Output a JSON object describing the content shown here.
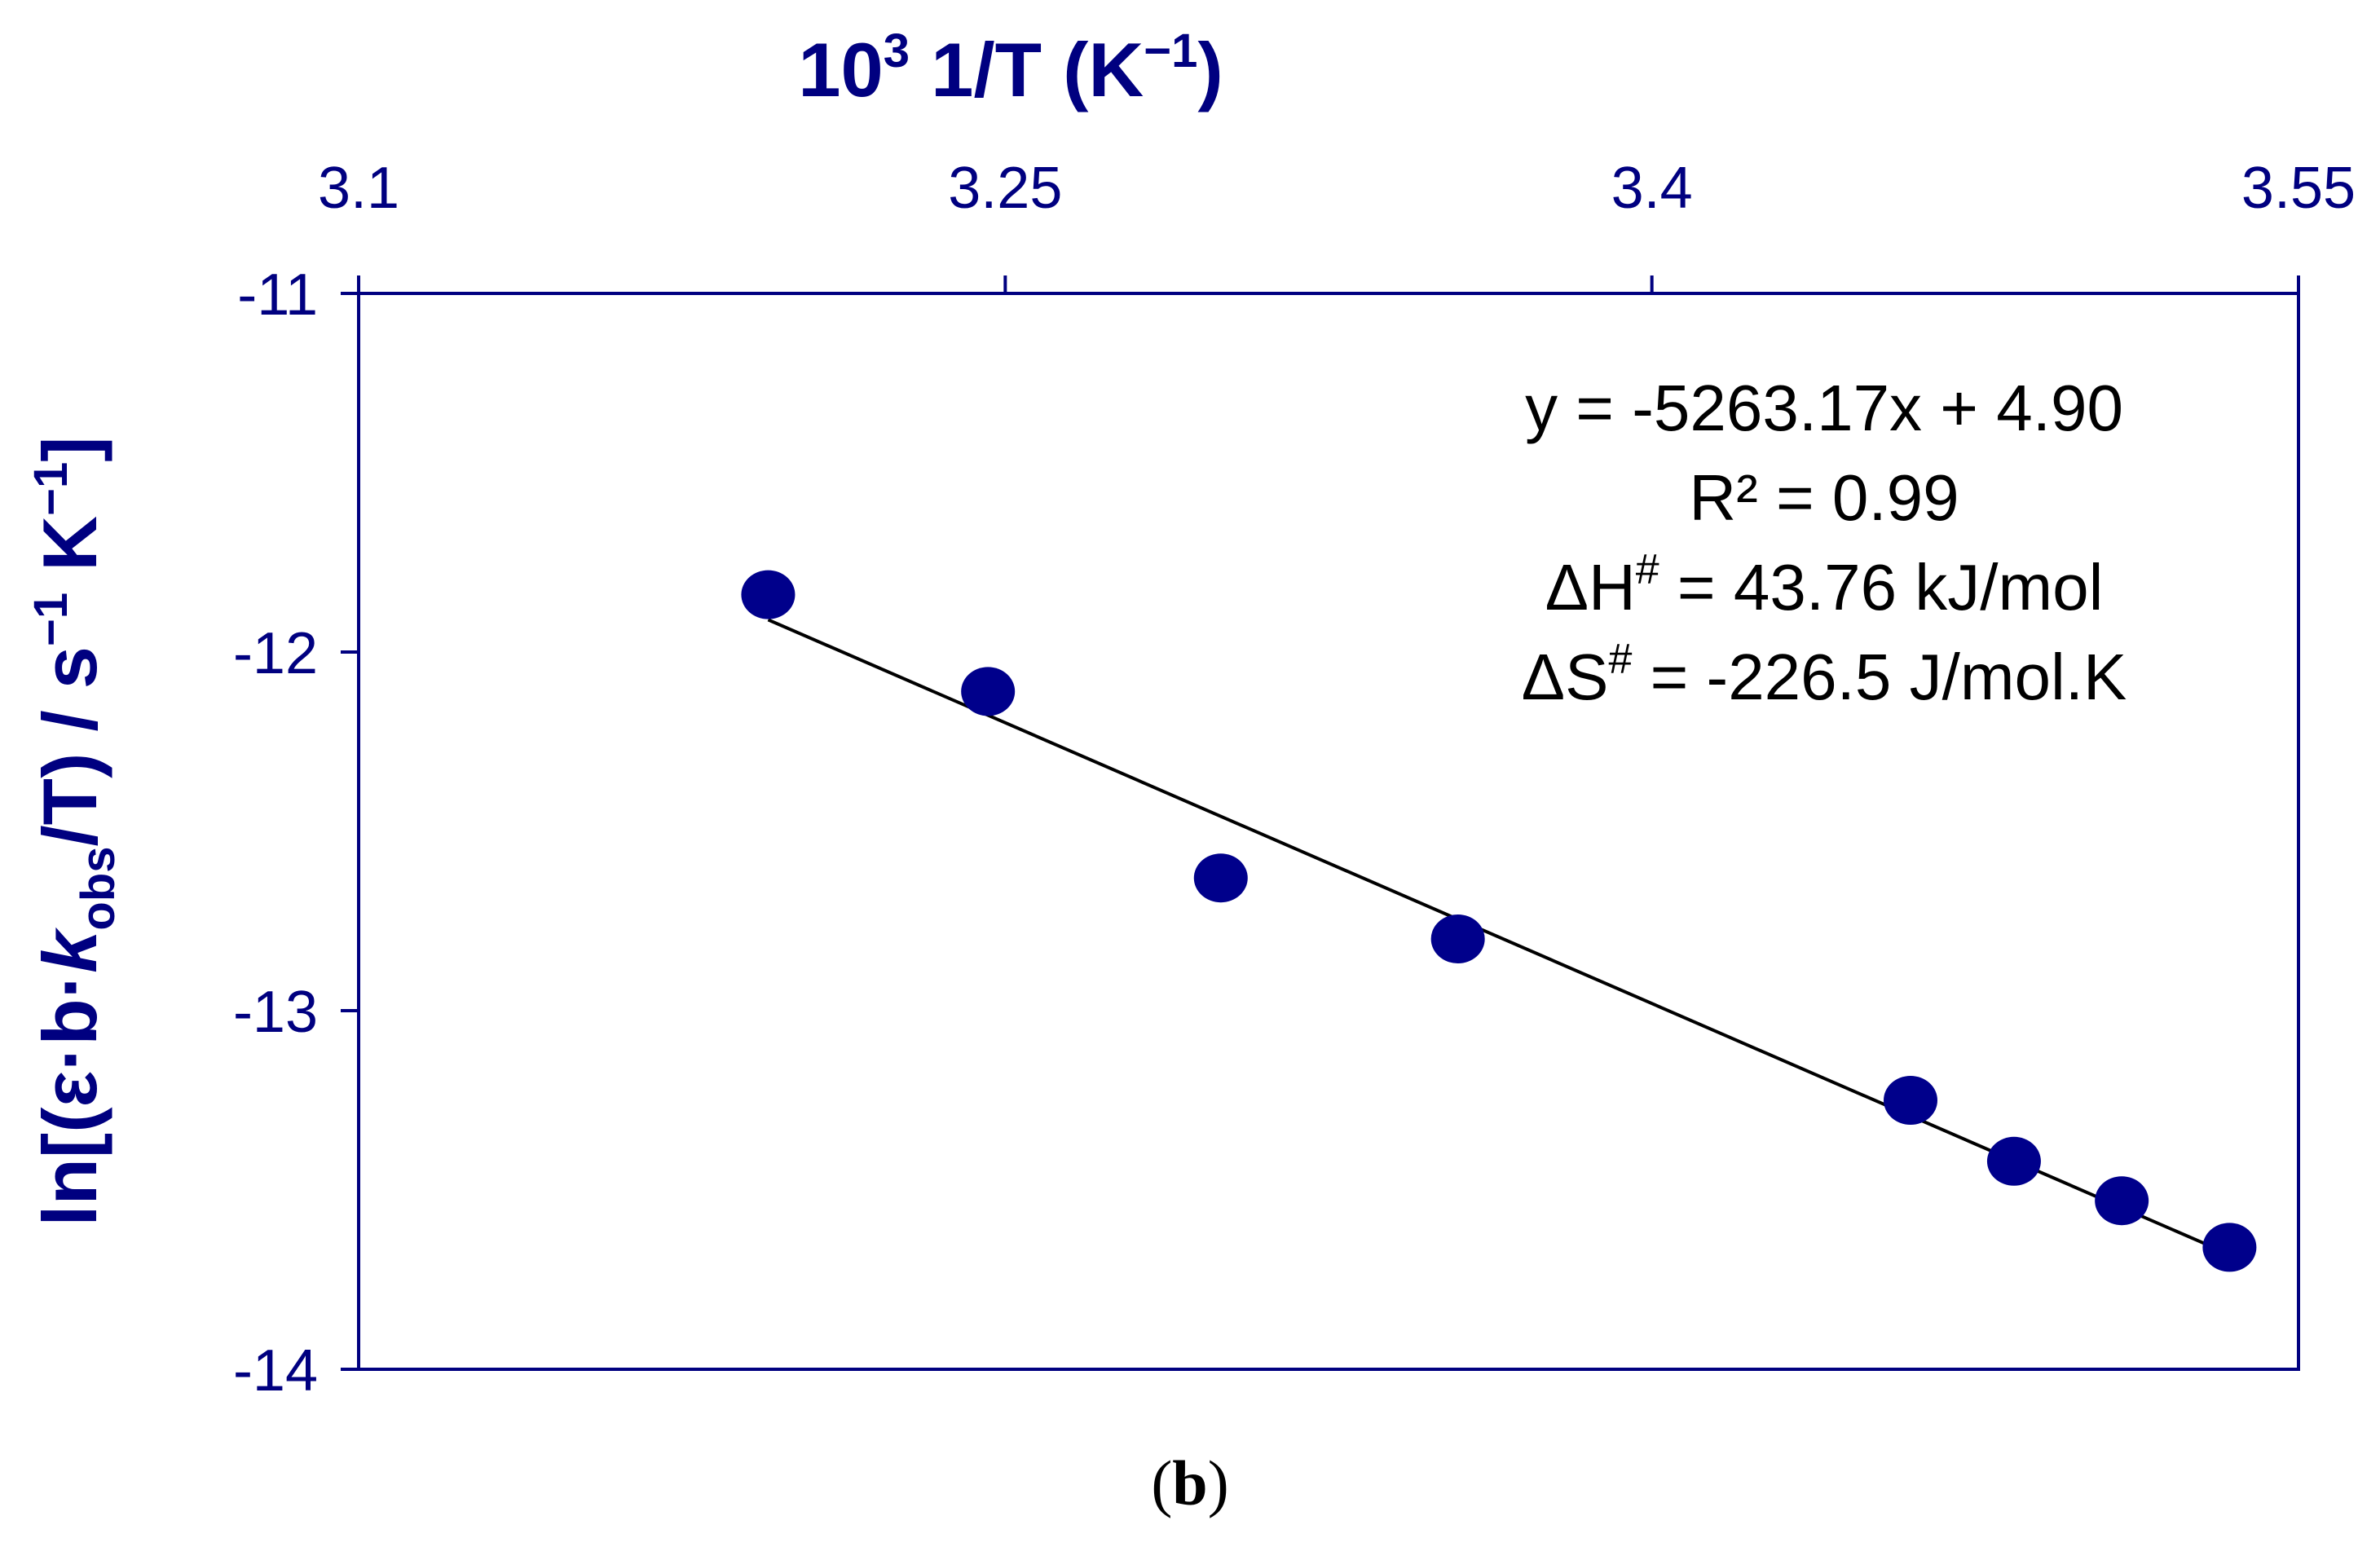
{
  "chart_data": {
    "type": "scatter",
    "colors": {
      "axis": "#000080",
      "marker": "#00008B",
      "fit_line": "#000000",
      "annotation_text": "#000000",
      "label_text": "#000080"
    },
    "x_axis": {
      "position": "top",
      "label_main": "10",
      "label_sup": "3",
      "label_mid": " 1/T (K",
      "label_sup2": "−1",
      "label_end": ")",
      "range": [
        3.1,
        3.55
      ],
      "ticks": [
        3.1,
        3.25,
        3.4,
        3.55
      ],
      "tick_labels": [
        "3.1",
        "3.25",
        "3.4",
        "3.55"
      ]
    },
    "y_axis": {
      "label_prefix": "ln[(ε·b·",
      "label_k": "k",
      "label_obs": "obs",
      "label_mid": "/T) / s",
      "label_sup1": "−1",
      "label_k_unit": " K",
      "label_sup2": "−1",
      "label_end": "]",
      "range": [
        -14,
        -11
      ],
      "ticks": [
        -11,
        -12,
        -13,
        -14
      ],
      "tick_labels": [
        "-11",
        "-12",
        "-13",
        "-14"
      ]
    },
    "points": [
      {
        "x": 3.195,
        "y": -11.84
      },
      {
        "x": 3.246,
        "y": -12.11
      },
      {
        "x": 3.3,
        "y": -12.63
      },
      {
        "x": 3.355,
        "y": -12.8
      },
      {
        "x": 3.46,
        "y": -13.25
      },
      {
        "x": 3.484,
        "y": -13.42
      },
      {
        "x": 3.509,
        "y": -13.53
      },
      {
        "x": 3.534,
        "y": -13.66
      }
    ],
    "fit": {
      "x_start": 3.195,
      "x_end": 3.536,
      "y_start": -11.91,
      "y_end": -13.69
    },
    "annotations": [
      "y = -5263.17x + 4.90",
      "R² = 0.99",
      "ΔH",
      "ΔS"
    ],
    "annotation_lines": {
      "eq": "y = -5263.17x + 4.90",
      "r2": "R² = 0.99",
      "dh_prefix": "ΔH",
      "dh_sup": "#",
      "dh_value": " = 43.76 kJ/mol",
      "ds_prefix": "ΔS",
      "ds_sup": "#",
      "ds_value": " = -226.5 J/mol.K"
    }
  },
  "caption": {
    "open": "(",
    "letter": "b",
    "close": ")"
  }
}
